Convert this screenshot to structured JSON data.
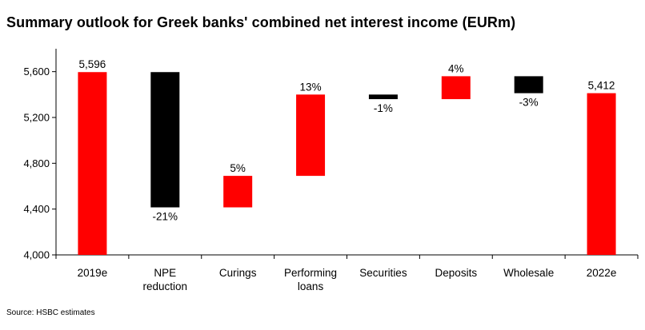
{
  "title": "Summary outlook for Greek banks' combined net interest income (EURm)",
  "source": "Source: HSBC estimates",
  "colors": {
    "increase": "#ff0000",
    "decrease": "#000000",
    "total": "#ff0000"
  },
  "chart_data": {
    "type": "bar",
    "subtype": "waterfall",
    "categories": [
      [
        "2019e"
      ],
      [
        "NPE",
        "reduction"
      ],
      [
        "Curings"
      ],
      [
        "Performing",
        "loans"
      ],
      [
        "Securities"
      ],
      [
        "Deposits"
      ],
      [
        "Wholesale"
      ],
      [
        "2022e"
      ]
    ],
    "bars": [
      {
        "start": 4000,
        "end": 5596,
        "kind": "total",
        "label": "5,596"
      },
      {
        "start": 5596,
        "end": 4415,
        "kind": "decrease",
        "label": "-21%"
      },
      {
        "start": 4415,
        "end": 4690,
        "kind": "increase",
        "label": "5%"
      },
      {
        "start": 4690,
        "end": 5400,
        "kind": "increase",
        "label": "13%"
      },
      {
        "start": 5400,
        "end": 5360,
        "kind": "decrease",
        "label": "-1%"
      },
      {
        "start": 5360,
        "end": 5560,
        "kind": "increase",
        "label": "4%"
      },
      {
        "start": 5560,
        "end": 5412,
        "kind": "decrease",
        "label": "-3%"
      },
      {
        "start": 4000,
        "end": 5412,
        "kind": "total",
        "label": "5,412"
      }
    ],
    "yticks": [
      4000,
      4400,
      4800,
      5200,
      5600
    ],
    "ytick_labels": [
      "4,000",
      "4,400",
      "4,800",
      "5,200",
      "5,600"
    ],
    "ylim": [
      4000,
      5800
    ],
    "xlabel": "",
    "ylabel": ""
  }
}
